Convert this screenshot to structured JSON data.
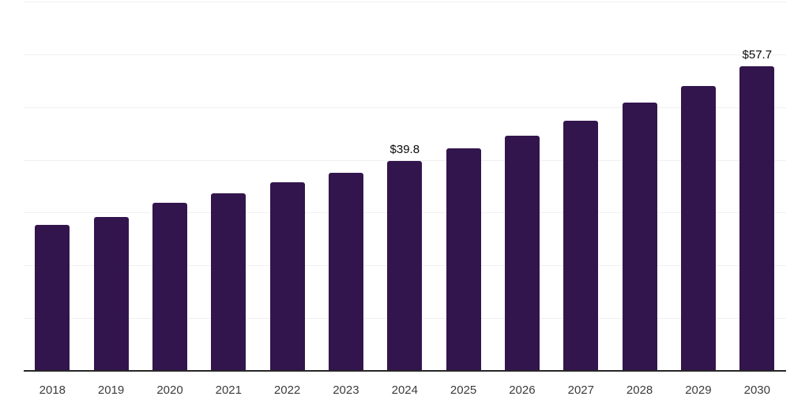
{
  "chart_data": {
    "type": "bar",
    "title": "",
    "xlabel": "",
    "ylabel": "",
    "categories": [
      "2018",
      "2019",
      "2020",
      "2021",
      "2022",
      "2023",
      "2024",
      "2025",
      "2026",
      "2027",
      "2028",
      "2029",
      "2030"
    ],
    "values": [
      27.7,
      29.2,
      31.9,
      33.6,
      35.7,
      37.6,
      39.8,
      42.2,
      44.6,
      47.4,
      50.8,
      54.0,
      57.7
    ],
    "annotations": [
      {
        "category": "2024",
        "label": "$39.8"
      },
      {
        "category": "2030",
        "label": "$57.7"
      }
    ],
    "ylim": [
      0,
      70
    ],
    "gridline_step": 10,
    "grid": true,
    "legend": false,
    "y_tick_labels_visible": false,
    "bar_color": "#33154d",
    "axis_color": "#262626",
    "gridline_color": "#f0f0f0",
    "label_color": "#0a0a0a",
    "tick_color": "#3c3c3c",
    "background_color": "#ffffff"
  }
}
